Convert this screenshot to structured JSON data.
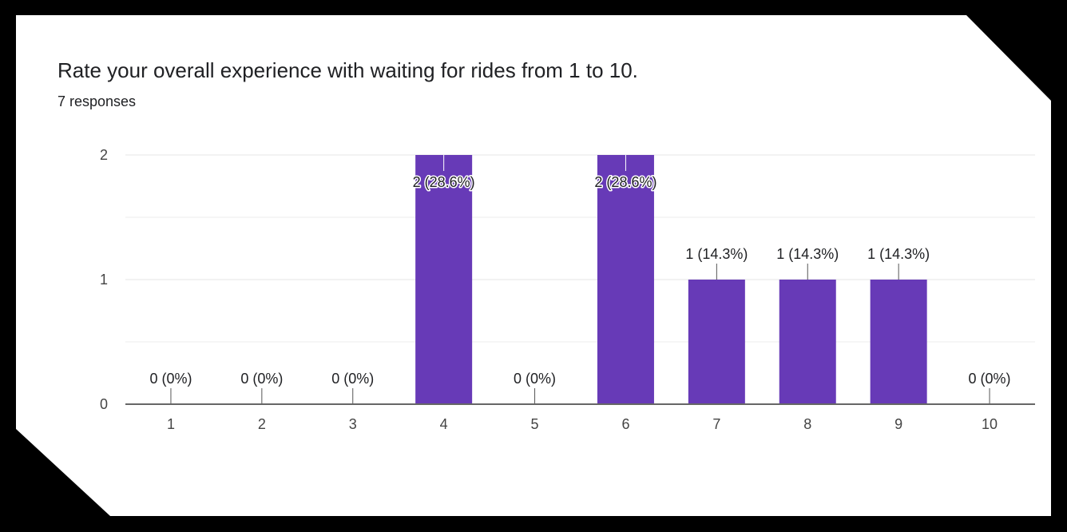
{
  "title": "Rate your overall experience with waiting for rides from 1 to 10.",
  "subtitle": "7 responses",
  "colors": {
    "bar": "#673ab7",
    "gridline": "#eeeeee",
    "axis": "#666666",
    "text": "#202124"
  },
  "chart_data": {
    "type": "bar",
    "categories": [
      "1",
      "2",
      "3",
      "4",
      "5",
      "6",
      "7",
      "8",
      "9",
      "10"
    ],
    "values": [
      0,
      0,
      0,
      2,
      0,
      2,
      1,
      1,
      1,
      0
    ],
    "data_labels": [
      "0 (0%)",
      "0 (0%)",
      "0 (0%)",
      "2 (28.6%)",
      "0 (0%)",
      "2 (28.6%)",
      "1 (14.3%)",
      "1 (14.3%)",
      "1 (14.3%)",
      "0 (0%)"
    ],
    "yticks": [
      "0",
      "1",
      "2"
    ],
    "ylim": [
      0,
      2
    ],
    "xlabel": "",
    "ylabel": "",
    "grid": true,
    "legend": "none"
  }
}
